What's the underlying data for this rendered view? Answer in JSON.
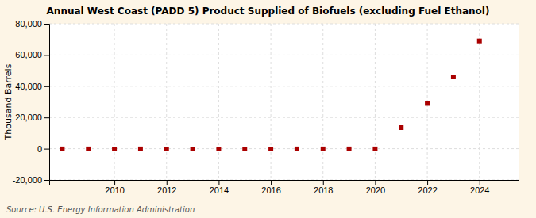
{
  "chart_data": {
    "type": "scatter",
    "title": "Annual West Coast (PADD 5) Product Supplied of Biofuels (excluding Fuel Ethanol)",
    "ylabel": "Thousand Barrels",
    "annotation": "Source: U.S. Energy Information Administration",
    "x": [
      2008,
      2009,
      2010,
      2011,
      2012,
      2013,
      2014,
      2015,
      2016,
      2017,
      2018,
      2019,
      2020,
      2021,
      2022,
      2023,
      2024
    ],
    "values": [
      -150,
      -150,
      -200,
      -150,
      -200,
      -200,
      -200,
      -200,
      -200,
      -150,
      -150,
      -150,
      -150,
      13500,
      29000,
      46000,
      69000
    ],
    "color": "#aa0000",
    "marker": "square",
    "xlim": [
      2007.5,
      2025.5
    ],
    "xticks": [
      2010,
      2012,
      2014,
      2016,
      2018,
      2020,
      2022,
      2024
    ],
    "ylim": [
      -20000,
      80000
    ],
    "yticks": [
      {
        "value": -20000,
        "label": "-20,000"
      },
      0,
      {
        "value": 20000,
        "label": "20,000"
      },
      {
        "value": 40000,
        "label": "40,000"
      },
      {
        "value": 60000,
        "label": "60,000"
      },
      {
        "value": 80000,
        "label": "80,000"
      }
    ],
    "grid": true
  }
}
